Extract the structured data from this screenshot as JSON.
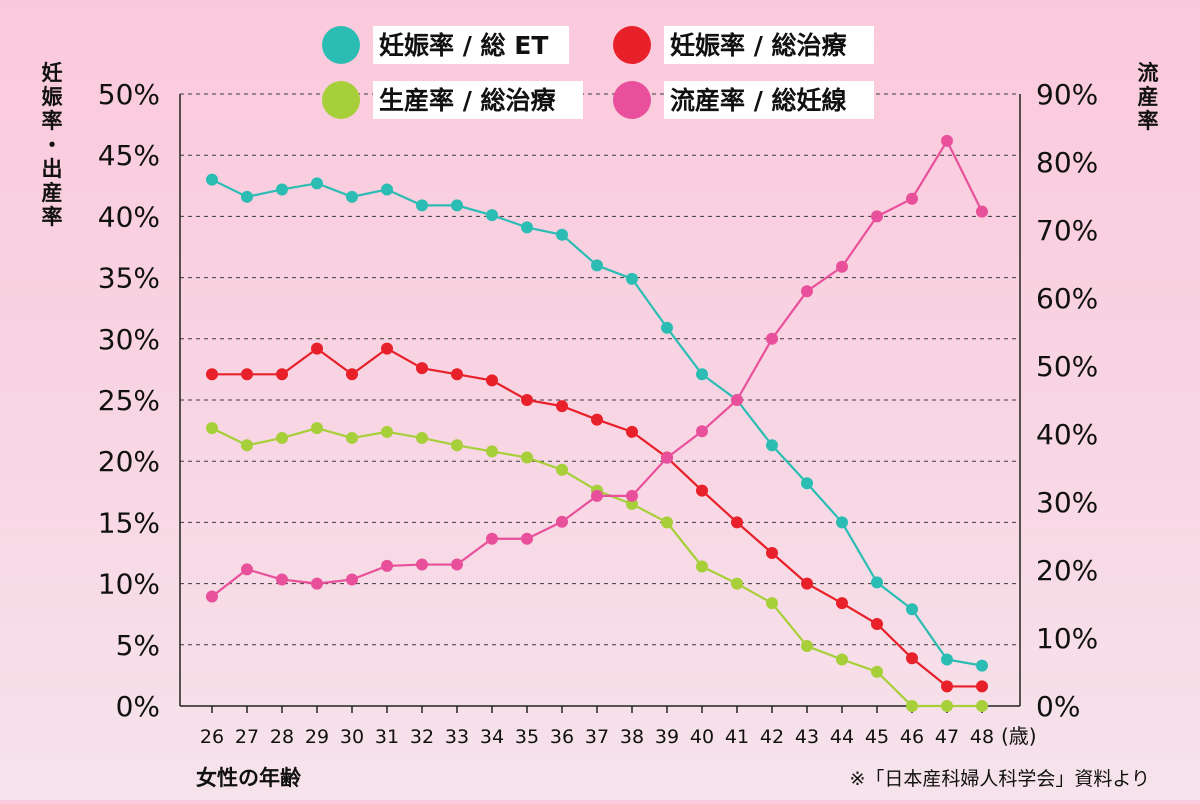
{
  "chart_data": {
    "type": "line",
    "legend": {
      "placement": "top",
      "items": [
        {
          "label": "妊娠率 / 総 ET",
          "color": "#2bbdb3",
          "series": "pregnancy_et"
        },
        {
          "label": "妊娠率 / 総治療",
          "color": "#e8202a",
          "series": "pregnancy_treatment"
        },
        {
          "label": "生産率 / 総治療",
          "color": "#a6cf39",
          "series": "live_birth_treatment"
        },
        {
          "label": "流産率 / 総妊線",
          "color": "#e9509b",
          "series": "miscarriage"
        }
      ]
    },
    "y_left_label": "妊娠率・出産率",
    "y_right_label": "流産率",
    "x_label": "女性の年齢",
    "x_unit": "(歳)",
    "source_note": "※「日本産科婦人科学会」資料より",
    "x_categories": [
      "26",
      "27",
      "28",
      "29",
      "30",
      "31",
      "32",
      "33",
      "34",
      "35",
      "36",
      "37",
      "38",
      "39",
      "40",
      "41",
      "42",
      "43",
      "44",
      "45",
      "46",
      "47",
      "48"
    ],
    "y_left": {
      "min": 0,
      "max": 50,
      "ticks": [
        "0%",
        "5%",
        "10%",
        "15%",
        "20%",
        "25%",
        "30%",
        "35%",
        "40%",
        "45%",
        "50%"
      ]
    },
    "y_right": {
      "min": 0,
      "max": 90,
      "ticks": [
        "0%",
        "10%",
        "20%",
        "30%",
        "40%",
        "50%",
        "60%",
        "70%",
        "80%",
        "90%"
      ]
    },
    "grid": "dashed horizontal",
    "series": [
      {
        "key": "pregnancy_et",
        "name": "妊娠率 / 総 ET",
        "axis": "left",
        "color": "#2bbdb3",
        "values": [
          43,
          41.6,
          42.2,
          42.7,
          41.6,
          42.2,
          40.9,
          40.9,
          40.1,
          39.1,
          38.5,
          36.0,
          34.9,
          30.9,
          27.1,
          25.0,
          21.3,
          18.2,
          15.0,
          10.1,
          7.9,
          3.8,
          3.3
        ]
      },
      {
        "key": "pregnancy_treatment",
        "name": "妊娠率 / 総治療",
        "axis": "left",
        "color": "#e8202a",
        "values": [
          27.1,
          27.1,
          27.1,
          29.2,
          27.1,
          29.2,
          27.6,
          27.1,
          26.6,
          25.0,
          24.5,
          23.4,
          22.4,
          20.3,
          17.6,
          15.0,
          12.5,
          10.0,
          8.4,
          6.7,
          3.9,
          1.6,
          1.6
        ]
      },
      {
        "key": "live_birth_treatment",
        "name": "生産率 / 総治療",
        "axis": "left",
        "color": "#a6cf39",
        "values": [
          22.7,
          21.3,
          21.9,
          22.7,
          21.9,
          22.4,
          21.9,
          21.3,
          20.8,
          20.3,
          19.3,
          17.6,
          16.5,
          15.0,
          11.4,
          10.0,
          8.4,
          4.9,
          3.8,
          2.8,
          0,
          0,
          0
        ]
      },
      {
        "key": "miscarriage",
        "name": "流産率 / 総妊線",
        "axis": "right",
        "color": "#e9509b",
        "values": [
          16.1,
          20.1,
          18.6,
          18.0,
          18.6,
          20.6,
          20.8,
          20.8,
          24.6,
          24.6,
          27.1,
          30.9,
          30.9,
          36.5,
          40.4,
          45.0,
          54.0,
          61.0,
          64.6,
          72.0,
          74.6,
          83.1,
          72.7
        ]
      }
    ]
  }
}
